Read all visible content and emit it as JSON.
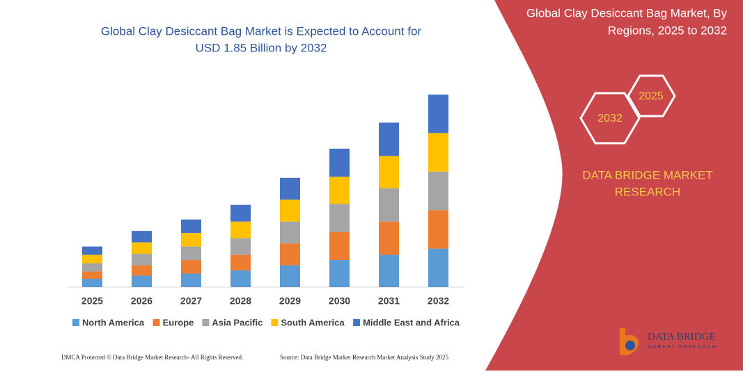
{
  "chart_data": {
    "type": "stacked_bar",
    "title": [
      "Global Clay Desiccant Bag Market is Expected to Account for",
      "USD 1.85 Billion by 2032"
    ],
    "categories": [
      "2025",
      "2026",
      "2027",
      "2028",
      "2029",
      "2030",
      "2031",
      "2032"
    ],
    "series": [
      {
        "name": "North America",
        "color": "#5b9bd5",
        "values": [
          0.08,
          0.11,
          0.13,
          0.16,
          0.21,
          0.26,
          0.31,
          0.37
        ]
      },
      {
        "name": "Europe",
        "color": "#ed7d31",
        "values": [
          0.07,
          0.1,
          0.13,
          0.15,
          0.21,
          0.27,
          0.32,
          0.37
        ]
      },
      {
        "name": "Asia Pacific",
        "color": "#a5a5a5",
        "values": [
          0.08,
          0.11,
          0.13,
          0.16,
          0.21,
          0.27,
          0.32,
          0.37
        ]
      },
      {
        "name": "South America",
        "color": "#ffc000",
        "values": [
          0.08,
          0.11,
          0.13,
          0.16,
          0.21,
          0.26,
          0.31,
          0.37
        ]
      },
      {
        "name": "Middle East and Africa",
        "color": "#4472c4",
        "values": [
          0.08,
          0.11,
          0.13,
          0.16,
          0.21,
          0.27,
          0.32,
          0.37
        ]
      }
    ]
  },
  "sidebar": {
    "title": [
      "Global Clay Desiccant Bag Market, By",
      "Regions, 2025 to 2032"
    ],
    "hex_years": [
      "2032",
      "2025"
    ],
    "brand": [
      "DATA BRIDGE MARKET",
      "RESEARCH"
    ]
  },
  "logo": {
    "name": "DATA BRIDGE",
    "tagline": "MARKET RESEARCH"
  },
  "footer": {
    "left": "DMCA Protected © Data Bridge Market Research-  All Rights Reserved.",
    "right": "Source: Data Bridge Market Research  Market Analysis Study 2025"
  }
}
